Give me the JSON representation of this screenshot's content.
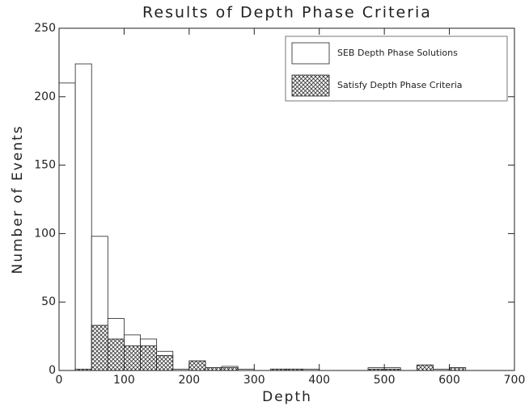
{
  "chart_data": {
    "type": "histogram",
    "title": "Results of Depth Phase Criteria",
    "x_label": "Depth",
    "y_label": "Number of Events",
    "bins": [
      0,
      25,
      50,
      75,
      100,
      125,
      150,
      175,
      200,
      225,
      250,
      275,
      300,
      325,
      350,
      375,
      400,
      425,
      450,
      475,
      500,
      525,
      550,
      575,
      600,
      625,
      650,
      675,
      700
    ],
    "series": [
      {
        "name": "SEB Depth Phase Solutions",
        "color": "#ffffff",
        "values": [
          210,
          224,
          98,
          38,
          26,
          23,
          14,
          1,
          7,
          2,
          3,
          1,
          0,
          1,
          1,
          1,
          0,
          0,
          0,
          2,
          2,
          0,
          4,
          1,
          2,
          0,
          0,
          0
        ]
      },
      {
        "name": "Satisfy Depth Phase Criteria",
        "color": "hatch",
        "values": [
          0,
          1,
          33,
          23,
          18,
          18,
          11,
          0,
          7,
          2,
          2,
          0,
          0,
          1,
          1,
          0,
          0,
          0,
          0,
          1,
          1,
          0,
          4,
          0,
          2,
          0,
          0,
          0
        ]
      }
    ],
    "xlim": [
      0,
      700
    ],
    "ylim": [
      0,
      250
    ],
    "xticks": [
      0,
      100,
      200,
      300,
      400,
      500,
      600,
      700
    ],
    "yticks": [
      0,
      50,
      100,
      150,
      200,
      250
    ],
    "legend": "upper right"
  }
}
